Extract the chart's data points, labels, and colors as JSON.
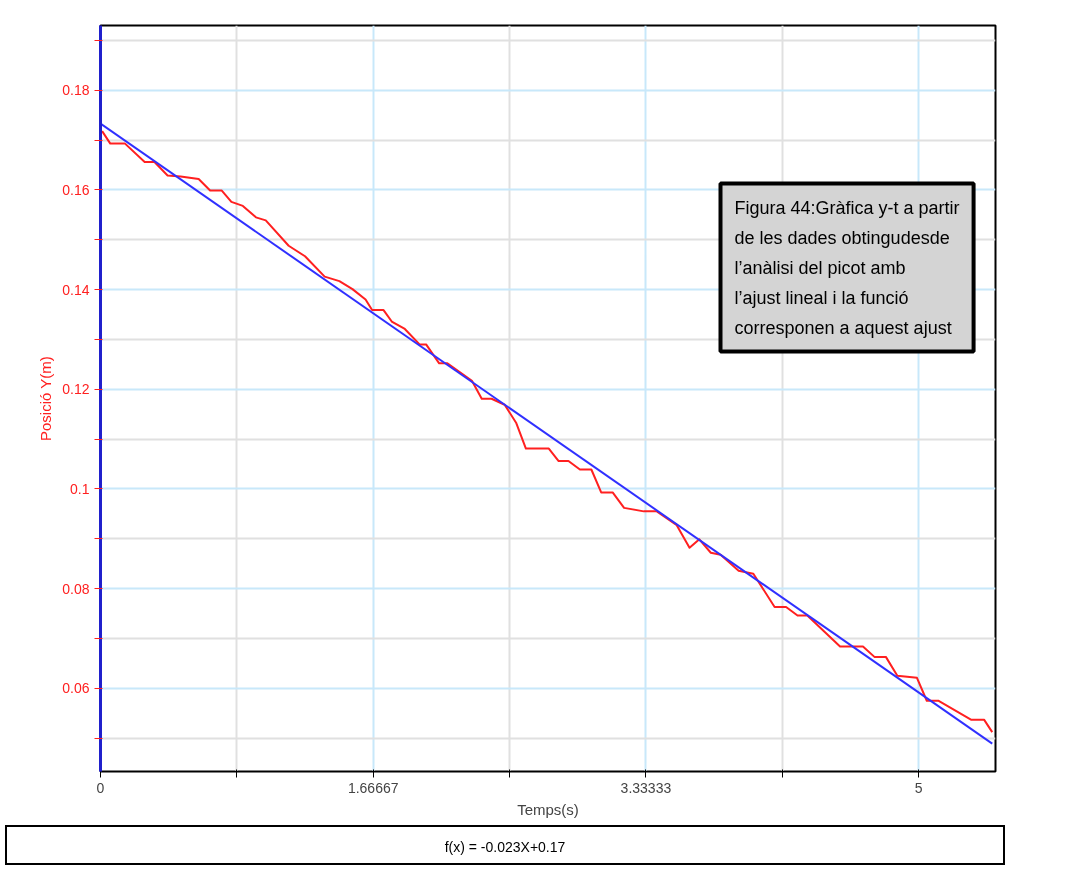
{
  "chart_data": {
    "type": "line",
    "xlabel": "Temps(s)",
    "ylabel": "Posició Y(m)",
    "xlim": [
      0,
      5.47
    ],
    "ylim": [
      0.0433,
      0.193
    ],
    "xticks": [
      0,
      {
        "value": 0.83333,
        "label": null
      },
      1.66667,
      {
        "value": 2.5,
        "label": null
      },
      3.33333,
      {
        "value": 4.16667,
        "label": null
      },
      5
    ],
    "yticks": [
      {
        "value": 0.05,
        "label": null
      },
      0.06,
      {
        "value": 0.07,
        "label": null
      },
      0.08,
      {
        "value": 0.09,
        "label": null
      },
      0.1,
      {
        "value": 0.11,
        "label": null
      },
      0.12,
      {
        "value": 0.13,
        "label": null
      },
      0.14,
      {
        "value": 0.15,
        "label": null
      },
      0.16,
      {
        "value": 0.17,
        "label": null
      },
      0.18,
      {
        "value": 0.19,
        "label": null
      }
    ],
    "grid": true,
    "marker": "none",
    "line_style": "solid",
    "series": [
      {
        "color": "#ff2020",
        "x": [
          0.01,
          0.06,
          0.15,
          0.27,
          0.33,
          0.41,
          0.49,
          0.6,
          0.67,
          0.74,
          0.8,
          0.87,
          0.95,
          1.01,
          1.15,
          1.25,
          1.37,
          1.46,
          1.54,
          1.62,
          1.66,
          1.73,
          1.78,
          1.86,
          1.95,
          1.99,
          2.07,
          2.12,
          2.27,
          2.33,
          2.39,
          2.47,
          2.54,
          2.6,
          2.74,
          2.8,
          2.86,
          2.93,
          3.0,
          3.06,
          3.13,
          3.2,
          3.32,
          3.4,
          3.52,
          3.6,
          3.66,
          3.73,
          3.79,
          3.9,
          3.99,
          4.12,
          4.19,
          4.26,
          4.32,
          4.52,
          4.66,
          4.73,
          4.8,
          4.87,
          4.99,
          5.05,
          5.12,
          5.32,
          5.4,
          5.45
        ],
        "values": [
          0.1718,
          0.1693,
          0.1693,
          0.1656,
          0.1656,
          0.1629,
          0.1627,
          0.1622,
          0.1599,
          0.1599,
          0.1576,
          0.1568,
          0.1545,
          0.1539,
          0.1488,
          0.1467,
          0.1426,
          0.1417,
          0.1401,
          0.138,
          0.1359,
          0.1359,
          0.1336,
          0.1321,
          0.129,
          0.129,
          0.1252,
          0.1252,
          0.1217,
          0.1181,
          0.1181,
          0.1169,
          0.1133,
          0.1081,
          0.1081,
          0.1056,
          0.1056,
          0.1039,
          0.1039,
          0.0993,
          0.0993,
          0.0962,
          0.0955,
          0.0955,
          0.0928,
          0.0882,
          0.0899,
          0.0872,
          0.0868,
          0.0836,
          0.083,
          0.0763,
          0.0763,
          0.0746,
          0.0746,
          0.0684,
          0.0684,
          0.0663,
          0.0663,
          0.0625,
          0.0621,
          0.0575,
          0.0575,
          0.0537,
          0.0537,
          0.0512
        ]
      },
      {
        "color": "#3030ff",
        "x": [
          0,
          5.45
        ],
        "values": [
          0.1733,
          0.0489
        ]
      }
    ],
    "annotations": [
      "Figura 44:Gràfica y-t a partir de les dades obtingudesde l’anàlisi del picot amb l’ajust lineal i la funció corresponen a aquest ajust",
      "f(x) = -0.023X+0.17"
    ]
  }
}
